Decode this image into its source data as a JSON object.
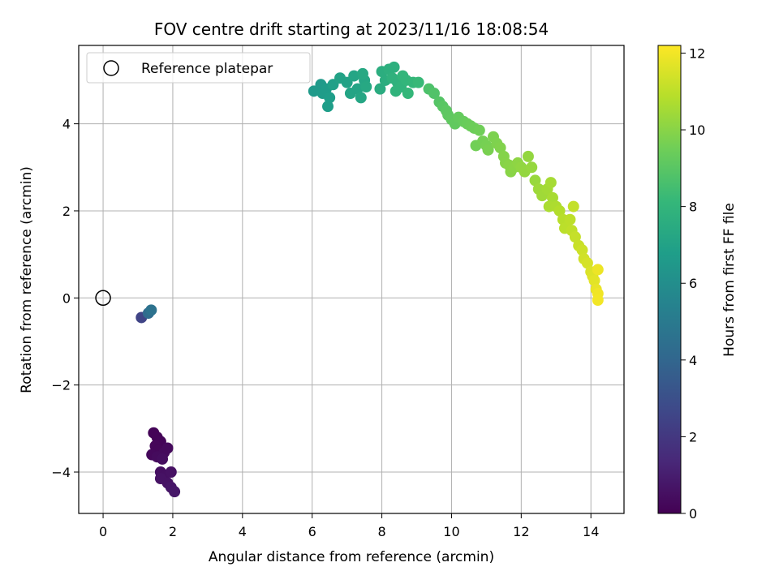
{
  "chart_data": {
    "type": "scatter",
    "title": "FOV centre drift starting at 2023/11/16 18:08:54",
    "xlabel": "Angular distance from reference (arcmin)",
    "ylabel": "Rotation from reference (arcmin)",
    "xlim": [
      -0.7,
      14.95
    ],
    "ylim": [
      -4.95,
      5.8
    ],
    "x_ticks": [
      0,
      2,
      4,
      6,
      8,
      10,
      12,
      14
    ],
    "y_ticks": [
      -4,
      -2,
      0,
      2,
      4
    ],
    "grid": true,
    "legend": {
      "placement": "top-left",
      "entries": [
        "Reference platepar"
      ]
    },
    "reference_point": {
      "x": 0,
      "y": 0,
      "label": "Reference platepar"
    },
    "colorbar": {
      "label": "Hours from first FF file",
      "colormap": "viridis",
      "range": [
        0,
        12.2
      ],
      "ticks": [
        0,
        2,
        4,
        6,
        8,
        10,
        12
      ]
    },
    "color_stops": [
      "#440154",
      "#482878",
      "#3e4989",
      "#31688e",
      "#26828e",
      "#1f9e89",
      "#35b779",
      "#6ece58",
      "#b5de2b",
      "#fde725"
    ],
    "series": [
      {
        "points": [
          [
            1.45,
            -3.1,
            0.1
          ],
          [
            1.55,
            -3.2,
            0.1
          ],
          [
            1.65,
            -3.3,
            0.15
          ],
          [
            1.5,
            -3.4,
            0.2
          ],
          [
            1.6,
            -3.5,
            0.2
          ],
          [
            1.4,
            -3.6,
            0.25
          ],
          [
            1.75,
            -3.55,
            0.3
          ],
          [
            1.85,
            -3.45,
            0.3
          ],
          [
            1.55,
            -3.65,
            0.35
          ],
          [
            1.7,
            -3.7,
            0.4
          ],
          [
            1.65,
            -4.0,
            0.5
          ],
          [
            1.75,
            -4.1,
            0.5
          ],
          [
            1.95,
            -4.0,
            0.55
          ],
          [
            1.65,
            -4.15,
            0.6
          ],
          [
            1.85,
            -4.25,
            0.6
          ],
          [
            1.95,
            -4.35,
            0.7
          ],
          [
            2.05,
            -4.45,
            0.75
          ],
          [
            1.1,
            -0.45,
            2.5
          ],
          [
            1.3,
            -0.35,
            4.2
          ],
          [
            1.38,
            -0.28,
            4.6
          ],
          [
            6.05,
            4.75,
            6.6
          ],
          [
            6.25,
            4.9,
            6.6
          ],
          [
            6.3,
            4.7,
            6.7
          ],
          [
            6.4,
            4.8,
            6.7
          ],
          [
            6.5,
            4.6,
            6.8
          ],
          [
            6.45,
            4.4,
            6.8
          ],
          [
            6.6,
            4.9,
            6.9
          ],
          [
            6.8,
            5.05,
            7.0
          ],
          [
            7.0,
            4.95,
            7.0
          ],
          [
            7.1,
            4.7,
            7.1
          ],
          [
            7.3,
            4.8,
            7.1
          ],
          [
            7.4,
            4.6,
            7.2
          ],
          [
            7.5,
            5.0,
            7.2
          ],
          [
            7.2,
            5.1,
            7.15
          ],
          [
            7.45,
            5.15,
            7.3
          ],
          [
            7.55,
            4.85,
            7.3
          ],
          [
            7.95,
            4.8,
            7.5
          ],
          [
            8.1,
            5.0,
            7.6
          ],
          [
            8.0,
            5.2,
            7.6
          ],
          [
            8.2,
            5.25,
            7.7
          ],
          [
            8.35,
            5.3,
            7.7
          ],
          [
            8.3,
            5.05,
            7.8
          ],
          [
            8.45,
            4.95,
            7.8
          ],
          [
            8.55,
            4.85,
            7.9
          ],
          [
            8.4,
            4.75,
            7.9
          ],
          [
            8.6,
            5.1,
            8.0
          ],
          [
            8.7,
            5.0,
            8.0
          ],
          [
            8.75,
            4.7,
            8.1
          ],
          [
            8.9,
            4.95,
            8.1
          ],
          [
            9.05,
            4.95,
            8.2
          ],
          [
            9.35,
            4.8,
            8.7
          ],
          [
            9.5,
            4.7,
            8.8
          ],
          [
            9.65,
            4.5,
            8.9
          ],
          [
            9.75,
            4.4,
            9.0
          ],
          [
            9.85,
            4.3,
            9.05
          ],
          [
            9.9,
            4.2,
            9.1
          ],
          [
            10.0,
            4.1,
            9.15
          ],
          [
            10.1,
            4.0,
            9.2
          ],
          [
            10.2,
            4.15,
            9.25
          ],
          [
            10.35,
            4.05,
            9.3
          ],
          [
            10.45,
            4.0,
            9.35
          ],
          [
            10.55,
            3.95,
            9.4
          ],
          [
            10.65,
            3.9,
            9.45
          ],
          [
            10.8,
            3.85,
            9.5
          ],
          [
            10.7,
            3.5,
            9.55
          ],
          [
            10.9,
            3.6,
            9.6
          ],
          [
            11.0,
            3.5,
            9.65
          ],
          [
            11.05,
            3.4,
            9.7
          ],
          [
            11.2,
            3.7,
            9.75
          ],
          [
            11.3,
            3.55,
            9.8
          ],
          [
            11.4,
            3.45,
            9.85
          ],
          [
            11.5,
            3.25,
            9.9
          ],
          [
            11.55,
            3.1,
            9.95
          ],
          [
            11.65,
            3.05,
            10.0
          ],
          [
            11.7,
            2.9,
            10.0
          ],
          [
            11.8,
            3.0,
            10.05
          ],
          [
            11.9,
            3.1,
            10.1
          ],
          [
            12.0,
            3.0,
            10.15
          ],
          [
            12.1,
            2.9,
            10.2
          ],
          [
            12.2,
            3.25,
            10.2
          ],
          [
            12.3,
            3.0,
            10.25
          ],
          [
            12.4,
            2.7,
            10.3
          ],
          [
            12.5,
            2.5,
            10.4
          ],
          [
            12.6,
            2.35,
            10.45
          ],
          [
            12.75,
            2.5,
            10.5
          ],
          [
            12.85,
            2.65,
            10.55
          ],
          [
            12.9,
            2.3,
            10.6
          ],
          [
            12.8,
            2.1,
            10.65
          ],
          [
            13.0,
            2.1,
            10.7
          ],
          [
            13.1,
            2.0,
            10.8
          ],
          [
            13.2,
            1.8,
            10.9
          ],
          [
            13.25,
            1.6,
            10.95
          ],
          [
            13.4,
            1.8,
            11.0
          ],
          [
            13.45,
            1.55,
            11.05
          ],
          [
            13.5,
            2.1,
            11.1
          ],
          [
            13.55,
            1.4,
            11.15
          ],
          [
            13.65,
            1.2,
            11.2
          ],
          [
            13.75,
            1.1,
            11.3
          ],
          [
            13.8,
            0.9,
            11.35
          ],
          [
            13.9,
            0.8,
            11.45
          ],
          [
            14.0,
            0.6,
            11.55
          ],
          [
            14.05,
            0.5,
            11.6
          ],
          [
            14.1,
            0.4,
            11.7
          ],
          [
            14.15,
            0.2,
            11.8
          ],
          [
            14.2,
            0.65,
            11.9
          ],
          [
            14.2,
            0.1,
            11.95
          ],
          [
            14.2,
            -0.05,
            12.0
          ]
        ]
      }
    ]
  }
}
